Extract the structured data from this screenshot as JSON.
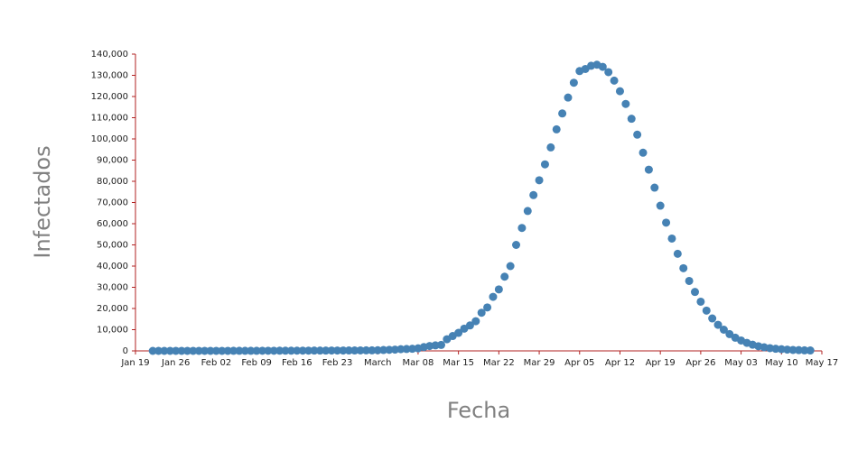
{
  "chart_data": {
    "type": "scatter",
    "xlabel": "Fecha",
    "ylabel": "Infectados",
    "color": "#4682b4",
    "x": [
      "Jan 22",
      "Jan 23",
      "Jan 24",
      "Jan 25",
      "Jan 26",
      "Jan 27",
      "Jan 28",
      "Jan 29",
      "Jan 30",
      "Jan 31",
      "Feb 01",
      "Feb 02",
      "Feb 03",
      "Feb 04",
      "Feb 05",
      "Feb 06",
      "Feb 07",
      "Feb 08",
      "Feb 09",
      "Feb 10",
      "Feb 11",
      "Feb 12",
      "Feb 13",
      "Feb 14",
      "Feb 15",
      "Feb 16",
      "Feb 17",
      "Feb 18",
      "Feb 19",
      "Feb 20",
      "Feb 21",
      "Feb 22",
      "Feb 23",
      "Feb 24",
      "Feb 25",
      "Feb 26",
      "Feb 27",
      "Feb 28",
      "Feb 29",
      "Mar 01",
      "Mar 02",
      "Mar 03",
      "Mar 04",
      "Mar 05",
      "Mar 06",
      "Mar 07",
      "Mar 08",
      "Mar 09",
      "Mar 10",
      "Mar 11",
      "Mar 12",
      "Mar 13",
      "Mar 14",
      "Mar 15",
      "Mar 16",
      "Mar 17",
      "Mar 18",
      "Mar 19",
      "Mar 20",
      "Mar 21",
      "Mar 22",
      "Mar 23",
      "Mar 24",
      "Mar 25",
      "Mar 26",
      "Mar 27",
      "Mar 28",
      "Mar 29",
      "Mar 30",
      "Mar 31",
      "Apr 01",
      "Apr 02",
      "Apr 03",
      "Apr 04",
      "Apr 05",
      "Apr 06",
      "Apr 07",
      "Apr 08",
      "Apr 09",
      "Apr 10",
      "Apr 11",
      "Apr 12",
      "Apr 13",
      "Apr 14",
      "Apr 15",
      "Apr 16",
      "Apr 17",
      "Apr 18",
      "Apr 19",
      "Apr 20",
      "Apr 21",
      "Apr 22",
      "Apr 23",
      "Apr 24",
      "Apr 25",
      "Apr 26",
      "Apr 27",
      "Apr 28",
      "Apr 29",
      "Apr 30",
      "May 01",
      "May 02",
      "May 03",
      "May 04",
      "May 05",
      "May 06",
      "May 07",
      "May 08",
      "May 09",
      "May 10",
      "May 11",
      "May 12",
      "May 13",
      "May 14",
      "May 15"
    ],
    "values": [
      1,
      2,
      2,
      3,
      4,
      5,
      6,
      8,
      10,
      12,
      14,
      17,
      20,
      24,
      28,
      33,
      38,
      44,
      50,
      57,
      64,
      72,
      80,
      88,
      97,
      106,
      115,
      125,
      135,
      145,
      155,
      165,
      175,
      185,
      195,
      205,
      220,
      240,
      260,
      300,
      400,
      500,
      600,
      800,
      900,
      1000,
      1200,
      1800,
      2300,
      2600,
      2800,
      5500,
      7000,
      8500,
      10500,
      12000,
      14000,
      18000,
      20500,
      25500,
      29000,
      35000,
      40000,
      50000,
      58000,
      66000,
      73500,
      80500,
      88000,
      96000,
      104500,
      112000,
      119500,
      126500,
      132000,
      133000,
      134500,
      135000,
      134000,
      131500,
      127500,
      122500,
      116500,
      109500,
      102000,
      93500,
      85500,
      77000,
      68500,
      60500,
      53000,
      45800,
      39000,
      33000,
      27800,
      23200,
      19000,
      15300,
      12300,
      10000,
      7900,
      6200,
      4900,
      3800,
      2900,
      2200,
      1700,
      1300,
      1000,
      800,
      600,
      450,
      350,
      250,
      200
    ],
    "xlim": [
      "Jan 19",
      "May 17"
    ],
    "xticks": [
      "Jan 19",
      "Jan 26",
      "Feb 02",
      "Feb 09",
      "Feb 16",
      "Feb 23",
      {
        "value": "Mar 01",
        "label": "March"
      },
      "Mar 08",
      "Mar 15",
      "Mar 22",
      "Mar 29",
      "Apr 05",
      "Apr 12",
      "Apr 19",
      "Apr 26",
      "May 03",
      "May 10",
      "May 17"
    ],
    "ylim": [
      0,
      140000
    ],
    "yticks": [
      0,
      {
        "value": 10000,
        "label": "10,000"
      },
      {
        "value": 20000,
        "label": "20,000"
      },
      {
        "value": 30000,
        "label": "30,000"
      },
      {
        "value": 40000,
        "label": "40,000"
      },
      {
        "value": 50000,
        "label": "50,000"
      },
      {
        "value": 60000,
        "label": "60,000"
      },
      {
        "value": 70000,
        "label": "70,000"
      },
      {
        "value": 80000,
        "label": "80,000"
      },
      {
        "value": 90000,
        "label": "90,000"
      },
      {
        "value": 100000,
        "label": "100,000"
      },
      {
        "value": 110000,
        "label": "110,000"
      },
      {
        "value": 120000,
        "label": "120,000"
      },
      {
        "value": 130000,
        "label": "130,000"
      },
      {
        "value": 140000,
        "label": "140,000"
      }
    ]
  }
}
